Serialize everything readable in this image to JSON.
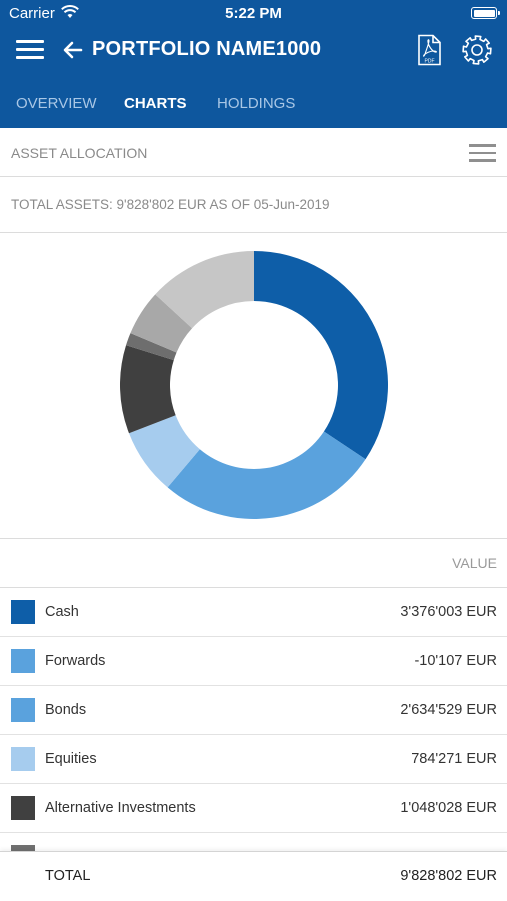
{
  "status_bar": {
    "carrier": "Carrier",
    "time": "5:22 PM"
  },
  "header": {
    "title": "PORTFOLIO NAME1000",
    "background_color": "#0e579e",
    "icons": [
      "menu-icon",
      "back-arrow-icon",
      "pdf-icon",
      "gear-icon"
    ]
  },
  "tabs": [
    {
      "label": "OVERVIEW",
      "active": false
    },
    {
      "label": "CHARTS",
      "active": true
    },
    {
      "label": "HOLDINGS",
      "active": false
    }
  ],
  "section": {
    "title": "ASSET ALLOCATION",
    "menu_icon": "list-menu-icon"
  },
  "summary": {
    "total_assets_text": "TOTAL ASSETS: 9'828'802 EUR AS OF 05-Jun-2019"
  },
  "table": {
    "value_header": "VALUE",
    "rows": [
      {
        "name": "Cash",
        "value": "3'376'003 EUR",
        "color": "#0e5ea8"
      },
      {
        "name": "Forwards",
        "value": "-10'107 EUR",
        "color": "#5aa2dd"
      },
      {
        "name": "Bonds",
        "value": "2'634'529 EUR",
        "color": "#5aa2dd"
      },
      {
        "name": "Equities",
        "value": "784'271 EUR",
        "color": "#a6ccee"
      },
      {
        "name": "Alternative Investments",
        "value": "1'048'028 EUR",
        "color": "#404040"
      },
      {
        "name": "",
        "value": "",
        "color": "#707070"
      }
    ],
    "total_label": "TOTAL",
    "total_value": "9'828'802 EUR"
  },
  "chart_data": {
    "type": "pie",
    "variant": "donut",
    "slices": [
      {
        "label": "Cash",
        "value": 3376003,
        "color": "#0e5ea8"
      },
      {
        "label": "Bonds",
        "value": 2634529,
        "color": "#5aa2dd"
      },
      {
        "label": "Equities",
        "value": 784271,
        "color": "#a6ccee"
      },
      {
        "label": "Alternative Investments",
        "value": 1048028,
        "color": "#404040"
      },
      {
        "label": "",
        "value": 150000,
        "color": "#6e6e6e"
      },
      {
        "label": "",
        "value": 540000,
        "color": "#a8a8a8"
      },
      {
        "label": "",
        "value": 1295971,
        "color": "#c6c6c6"
      }
    ]
  }
}
